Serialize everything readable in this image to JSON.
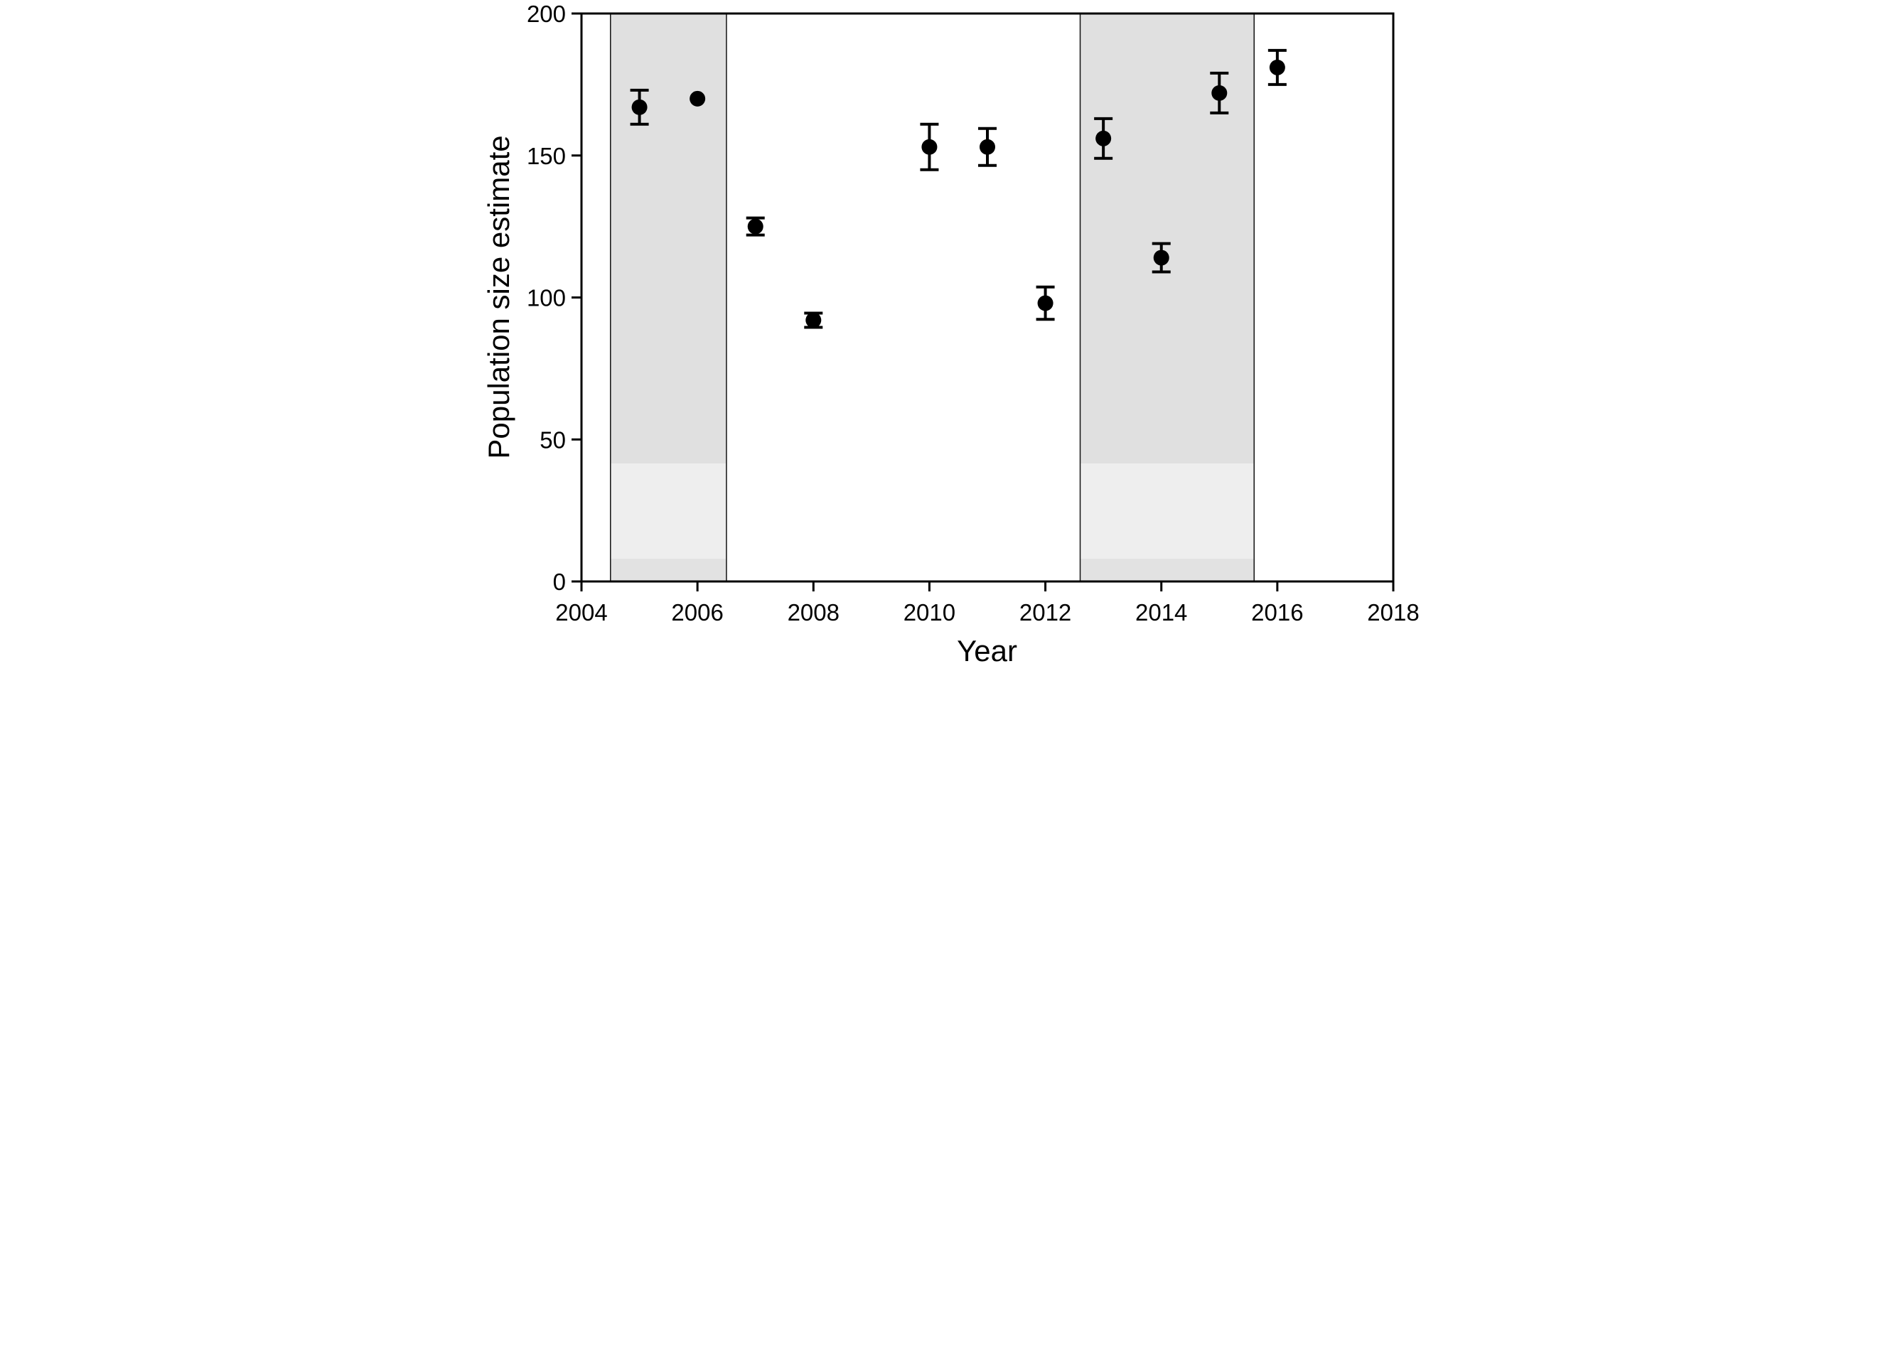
{
  "figure": {
    "background": "#ffffff",
    "frame_color": "#000000"
  },
  "chart_data": {
    "type": "scatter",
    "title": "",
    "xlabel": "Year",
    "ylabel": "Population size estimate",
    "xlim": [
      2004,
      2018
    ],
    "ylim": [
      0,
      200
    ],
    "x_ticks": [
      2004,
      2006,
      2008,
      2010,
      2012,
      2014,
      2016,
      2018
    ],
    "y_ticks": [
      0,
      50,
      100,
      150,
      200
    ],
    "grid": false,
    "legend": null,
    "marker": {
      "shape": "circle",
      "color": "#000000"
    },
    "series": [
      {
        "name": "Population size estimate",
        "points": [
          {
            "x": 2005,
            "y": 167,
            "err": 6
          },
          {
            "x": 2006,
            "y": 170,
            "err": null
          },
          {
            "x": 2007,
            "y": 125,
            "err": 3
          },
          {
            "x": 2008,
            "y": 92,
            "err": 2.5
          },
          {
            "x": 2010,
            "y": 153,
            "err": 8
          },
          {
            "x": 2011,
            "y": 153,
            "err": 6.5
          },
          {
            "x": 2012,
            "y": 98,
            "err": 5.7
          },
          {
            "x": 2013,
            "y": 156,
            "err": 7
          },
          {
            "x": 2014,
            "y": 114,
            "err": 5
          },
          {
            "x": 2015,
            "y": 172,
            "err": 7
          },
          {
            "x": 2016,
            "y": 181,
            "err": 6
          }
        ]
      }
    ],
    "shaded_regions": [
      {
        "x_start": 2004.5,
        "x_end": 2006.5
      },
      {
        "x_start": 2012.6,
        "x_end": 2015.6
      }
    ],
    "shade_bands": [
      {
        "y_start": 41.5,
        "y_end": 200,
        "color": "#e0e0e0"
      },
      {
        "y_start": 8,
        "y_end": 41.5,
        "color": "#eeeeee"
      },
      {
        "y_start": 0,
        "y_end": 8,
        "color": "#e2e2e2"
      }
    ],
    "region_border_color": "#111111"
  }
}
